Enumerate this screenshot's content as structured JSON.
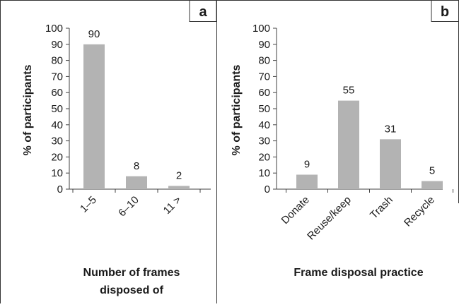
{
  "panels": [
    {
      "letter": "a",
      "ylabel": "% of participants",
      "xlabel_lines": [
        "Number of frames",
        "disposed of"
      ]
    },
    {
      "letter": "b",
      "ylabel": "% of participants",
      "xlabel_lines": [
        "Frame disposal practice"
      ]
    }
  ],
  "chart_data": [
    {
      "type": "bar",
      "categories": [
        "1–5",
        "6–10",
        "11 >"
      ],
      "values": [
        90,
        8,
        2
      ],
      "ylim": [
        0,
        100
      ],
      "yticks": [
        0,
        10,
        20,
        30,
        40,
        50,
        60,
        70,
        80,
        90,
        100
      ],
      "bar_color": "#b3b3b3",
      "title": "",
      "xlabel": "Number of frames disposed of",
      "ylabel": "% of participants",
      "grid": false
    },
    {
      "type": "bar",
      "categories": [
        "Donate",
        "Reuse/keep",
        "Trash",
        "Recycle"
      ],
      "values": [
        9,
        55,
        31,
        5
      ],
      "ylim": [
        0,
        100
      ],
      "yticks": [
        0,
        10,
        20,
        30,
        40,
        50,
        60,
        70,
        80,
        90,
        100
      ],
      "bar_color": "#b3b3b3",
      "title": "",
      "xlabel": "Frame disposal practice",
      "ylabel": "% of participants",
      "grid": false
    }
  ]
}
